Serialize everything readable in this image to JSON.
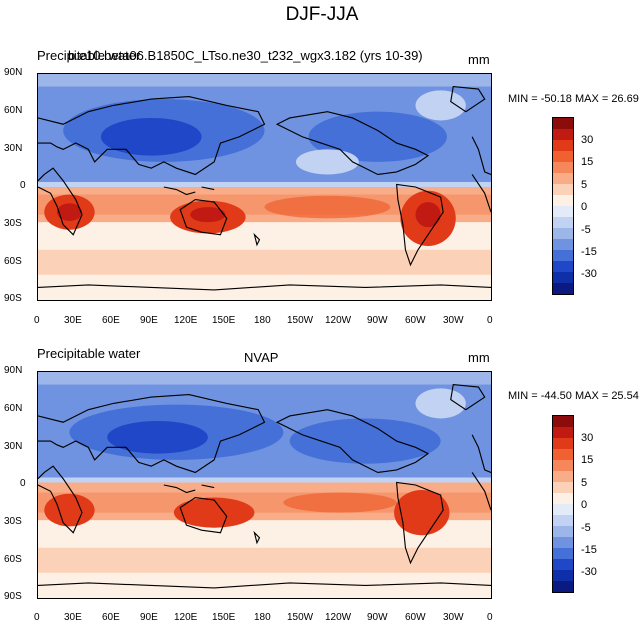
{
  "title": "DJF-JJA",
  "panels": [
    {
      "left_label": "Precipitable water",
      "overlay_label": "b.e10.beta06.B1850C_LTso.ne30_t232_wgx3.182 (yrs 10-39)",
      "center_label": "",
      "units": "mm",
      "stats": "MIN = -50.18 MAX =  26.69"
    },
    {
      "left_label": "Precipitable water",
      "overlay_label": "",
      "center_label": "NVAP",
      "units": "mm",
      "stats": "MIN = -44.50 MAX =  25.54"
    }
  ],
  "lat_ticks": [
    "90N",
    "60N",
    "30N",
    "0",
    "30S",
    "60S",
    "90S"
  ],
  "lon_ticks": [
    "0",
    "30E",
    "60E",
    "90E",
    "120E",
    "150E",
    "180",
    "150W",
    "120W",
    "90W",
    "60W",
    "30W",
    "0"
  ],
  "colorbar": {
    "labels": [
      "30",
      "15",
      "5",
      "0",
      "-5",
      "-15",
      "-30"
    ],
    "colors": [
      "#8c0c0c",
      "#c01a12",
      "#e03a18",
      "#f06030",
      "#f5875a",
      "#f8ad88",
      "#fbd2b8",
      "#fdf1e6",
      "#e3eaf8",
      "#c1d2f2",
      "#9cb6ea",
      "#6f93e0",
      "#4570d8",
      "#1f47c8",
      "#0f2fa8",
      "#0a1a80"
    ]
  },
  "icons": [
    "coastline-map"
  ]
}
